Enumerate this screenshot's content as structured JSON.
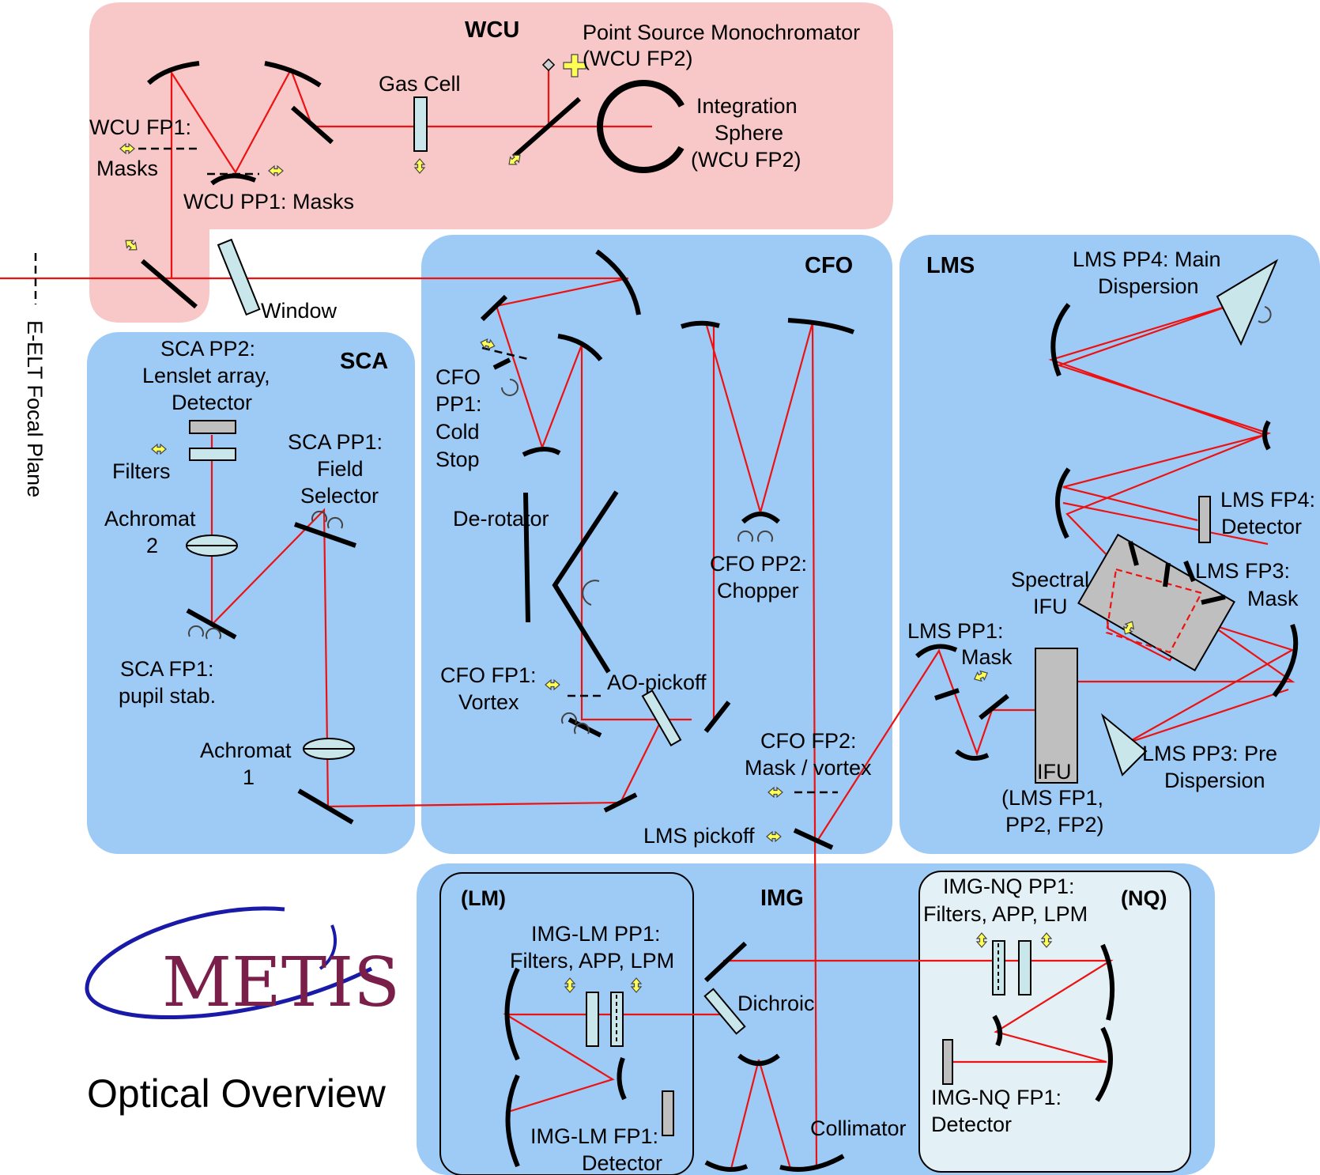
{
  "modules": {
    "wcu": "WCU",
    "cfo": "CFO",
    "lms": "LMS",
    "sca": "SCA",
    "img": "IMG",
    "img_lm": "(LM)",
    "img_nq": "(NQ)"
  },
  "labels": {
    "psm_1": "Point Source Monochromator",
    "psm_2": "(WCU FP2)",
    "gas_cell": "Gas Cell",
    "is_1": "Integration",
    "is_2": "Sphere",
    "is_3": "(WCU FP2)",
    "wcu_fp1_1": "WCU FP1:",
    "wcu_fp1_2": "Masks",
    "wcu_pp1": "WCU PP1: Masks",
    "window": "Window",
    "eelt": "E-ELT Focal Plane",
    "sca_pp2_1": "SCA PP2:",
    "sca_pp2_2": "Lenslet array,",
    "sca_pp2_3": "Detector",
    "filters": "Filters",
    "achromat2_1": "Achromat",
    "achromat2_2": "2",
    "sca_pp1_1": "SCA PP1:",
    "sca_pp1_2": "Field",
    "sca_pp1_3": "Selector",
    "sca_fp1_1": "SCA FP1:",
    "sca_fp1_2": "pupil stab.",
    "achromat1_1": "Achromat",
    "achromat1_2": "1",
    "cfo_pp1_1": "CFO",
    "cfo_pp1_2": "PP1:",
    "cfo_pp1_3": "Cold",
    "cfo_pp1_4": "Stop",
    "derotator": "De-rotator",
    "cfo_pp2_1": "CFO PP2:",
    "cfo_pp2_2": "Chopper",
    "cfo_fp1_1": "CFO FP1:",
    "cfo_fp1_2": "Vortex",
    "ao_pickoff": "AO-pickoff",
    "cfo_fp2_1": "CFO FP2:",
    "cfo_fp2_2": "Mask / vortex",
    "lms_pickoff": "LMS pickoff",
    "lms_pp4_1": "LMS PP4: Main",
    "lms_pp4_2": "Dispersion",
    "lms_fp4_1": "LMS FP4:",
    "lms_fp4_2": "Detector",
    "spectral_ifu_1": "Spectral",
    "spectral_ifu_2": "IFU",
    "lms_fp3_1": "LMS FP3:",
    "lms_fp3_2": "Mask",
    "lms_pp1_1": "LMS PP1:",
    "lms_pp1_2": "Mask",
    "ifu": "IFU",
    "ifu_sub_1": "(LMS FP1,",
    "ifu_sub_2": "PP2, FP2)",
    "lms_pp3_1": "LMS PP3: Pre",
    "lms_pp3_2": "Dispersion",
    "img_lm_pp1_1": "IMG-LM PP1:",
    "img_lm_pp1_2": "Filters, APP, LPM",
    "img_lm_fp1_1": "IMG-LM FP1:",
    "img_lm_fp1_2": "Detector",
    "dichroic": "Dichroic",
    "collimator": "Collimator",
    "img_nq_pp1_1": "IMG-NQ PP1:",
    "img_nq_pp1_2": "Filters, APP, LPM",
    "img_nq_fp1_1": "IMG-NQ FP1:",
    "img_nq_fp1_2": "Detector"
  },
  "branding": {
    "logo_text": "METIS",
    "caption": "Optical Overview"
  },
  "colors": {
    "wcu_panel": "#f8c7c7",
    "module_panel": "#9dcbf6",
    "subpanel": "#e3f1f6",
    "beam": "#ee1111",
    "actuator_arrow": "#ffff55",
    "logo_text": "#7a1e4a",
    "logo_swoosh": "#1a1aa8"
  }
}
